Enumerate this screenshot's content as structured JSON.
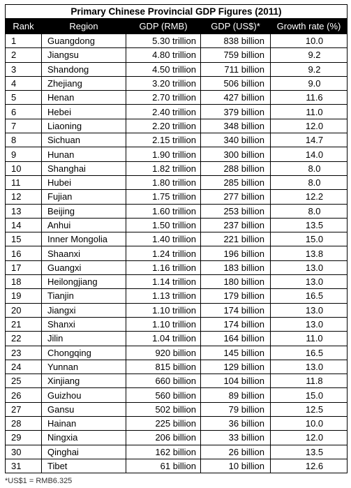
{
  "chart_data": {
    "type": "table",
    "title": "Primary Chinese Provincial GDP Figures (2011)",
    "columns": [
      "Rank",
      "Region",
      "GDP (RMB)",
      "GDP (US$)*",
      "Growth rate (%)"
    ],
    "rows": [
      [
        "1",
        "Guangdong",
        "5.30 trillion",
        "838 billion",
        "10.0"
      ],
      [
        "2",
        "Jiangsu",
        "4.80 trillion",
        "759 billion",
        "9.2"
      ],
      [
        "3",
        "Shandong",
        "4.50 trillion",
        "711 billion",
        "9.2"
      ],
      [
        "4",
        "Zhejiang",
        "3.20 trillion",
        "506 billion",
        "9.0"
      ],
      [
        "5",
        "Henan",
        "2.70 trillion",
        "427 billion",
        "11.6"
      ],
      [
        "6",
        "Hebei",
        "2.40 trillion",
        "379 billion",
        "11.0"
      ],
      [
        "7",
        "Liaoning",
        "2.20 trillion",
        "348 billion",
        "12.0"
      ],
      [
        "8",
        "Sichuan",
        "2.15 trillion",
        "340 billion",
        "14.7"
      ],
      [
        "9",
        "Hunan",
        "1.90 trillion",
        "300 billion",
        "14.0"
      ],
      [
        "10",
        "Shanghai",
        "1.82 trillion",
        "288 billion",
        "8.0"
      ],
      [
        "11",
        "Hubei",
        "1.80 trillion",
        "285 billion",
        "8.0"
      ],
      [
        "12",
        "Fujian",
        "1.75 trillion",
        "277 billion",
        "12.2"
      ],
      [
        "13",
        "Beijing",
        "1.60 trillion",
        "253 billion",
        "8.0"
      ],
      [
        "14",
        "Anhui",
        "1.50 trillion",
        "237 billion",
        "13.5"
      ],
      [
        "15",
        "Inner Mongolia",
        "1.40 trillion",
        "221 billion",
        "15.0"
      ],
      [
        "16",
        "Shaanxi",
        "1.24 trillion",
        "196 billion",
        "13.8"
      ],
      [
        "17",
        "Guangxi",
        "1.16 trillion",
        "183 billion",
        "13.0"
      ],
      [
        "18",
        "Heilongjiang",
        "1.14 trillion",
        "180 billion",
        "13.0"
      ],
      [
        "19",
        "Tianjin",
        "1.13 trillion",
        "179 billion",
        "16.5"
      ],
      [
        "20",
        "Jiangxi",
        "1.10 trillion",
        "174 billion",
        "13.0"
      ],
      [
        "21",
        "Shanxi",
        "1.10 trillion",
        "174 billion",
        "13.0"
      ],
      [
        "22",
        "Jilin",
        "1.04 trillion",
        "164 billion",
        "11.0"
      ],
      [
        "23",
        "Chongqing",
        "920 billion",
        "145 billion",
        "16.5"
      ],
      [
        "24",
        "Yunnan",
        "815 billion",
        "129 billion",
        "13.0"
      ],
      [
        "25",
        "Xinjiang",
        "660 billion",
        "104 billion",
        "11.8"
      ],
      [
        "26",
        "Guizhou",
        "560 billion",
        "89 billion",
        "15.0"
      ],
      [
        "27",
        "Gansu",
        "502 billion",
        "79 billion",
        "12.5"
      ],
      [
        "28",
        "Hainan",
        "225 billion",
        "36 billion",
        "10.0"
      ],
      [
        "29",
        "Ningxia",
        "206 billion",
        "33 billion",
        "12.0"
      ],
      [
        "30",
        "Qinghai",
        "162 billion",
        "26 billion",
        "13.5"
      ],
      [
        "31",
        "Tibet",
        "61 billion",
        "10 billion",
        "12.6"
      ]
    ]
  },
  "footnote": "*US$1 = RMB6.325"
}
